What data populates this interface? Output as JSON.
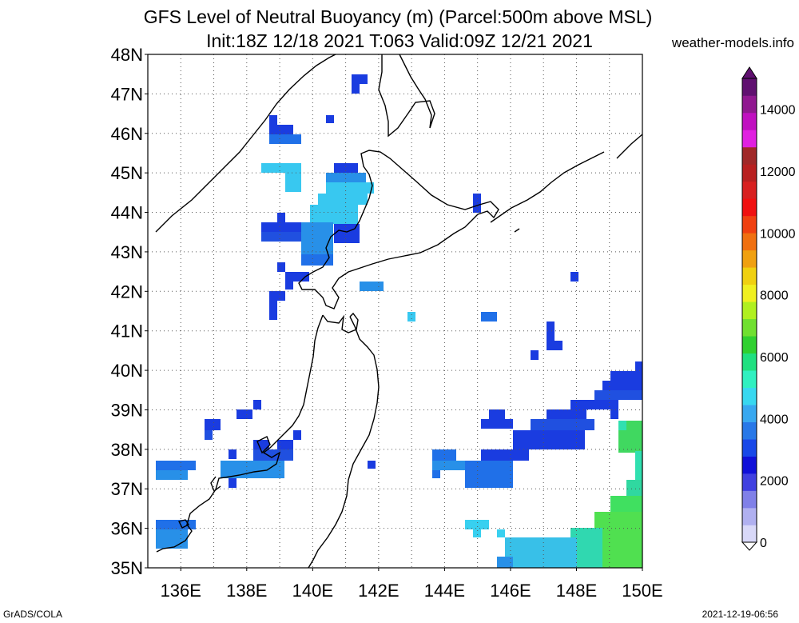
{
  "title": {
    "line1": "GFS Level of Neutral Buoyancy (m) (Parcel:500m above MSL)",
    "line2": "Init:18Z 12/18 2021 T:063 Valid:09Z 12/21 2021"
  },
  "site": "weather-models.info",
  "credit": "GrADS/COLA",
  "timestamp": "2021-12-19-06:56",
  "map": {
    "region": "Northern Japan / Hokkaido",
    "lon_range": [
      135,
      150
    ],
    "lat_range": [
      35,
      48
    ],
    "lat_ticks": [
      "35N",
      "36N",
      "37N",
      "38N",
      "39N",
      "40N",
      "41N",
      "42N",
      "43N",
      "44N",
      "45N",
      "46N",
      "47N",
      "48N"
    ],
    "lon_ticks": [
      "136E",
      "138E",
      "140E",
      "142E",
      "144E",
      "146E",
      "148E",
      "150E"
    ],
    "grid": "dotted"
  },
  "colorbar": {
    "labels": [
      "0",
      "2000",
      "4000",
      "6000",
      "8000",
      "10000",
      "12000",
      "14000"
    ],
    "max": 15000,
    "colors": [
      "#d8d8f8",
      "#b0b0f0",
      "#8080e8",
      "#4040e0",
      "#1010d8",
      "#1848e8",
      "#2878e8",
      "#38a8f0",
      "#38d8f0",
      "#30f0c0",
      "#20e080",
      "#30d030",
      "#70e030",
      "#b0f020",
      "#f0f020",
      "#f0d010",
      "#f0a010",
      "#f07010",
      "#f04010",
      "#f01010",
      "#d82020",
      "#b82020",
      "#a02828",
      "#e020e0",
      "#c010c0",
      "#901890",
      "#601070"
    ]
  },
  "colors": {
    "coast": "#000000",
    "grid": "#555555"
  }
}
